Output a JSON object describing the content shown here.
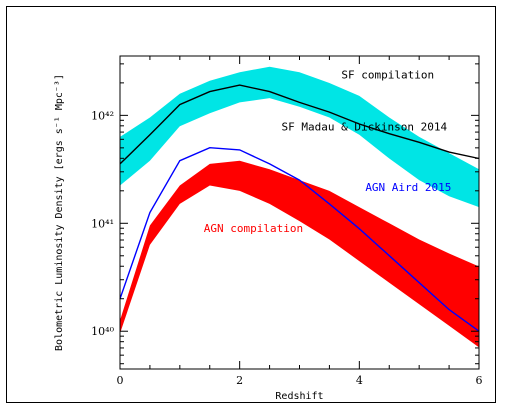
{
  "chart_data": {
    "type": "area",
    "xlabel": "Redshift",
    "ylabel": "Bolometric Luminosity Density [ergs s⁻¹ Mpc⁻³]",
    "xlim": [
      0,
      6
    ],
    "ylim_log10": [
      39.65,
      42.55
    ],
    "yscale": "log",
    "x_ticks": [
      "0",
      "2",
      "4",
      "6"
    ],
    "y_ticks": [
      {
        "exp": 40,
        "label": "10⁴⁰"
      },
      {
        "exp": 41,
        "label": "10⁴¹"
      },
      {
        "exp": 42,
        "label": "10⁴²"
      }
    ],
    "series": [
      {
        "name": "SF compilation",
        "kind": "band",
        "color": "#00e5e5",
        "x": [
          0.0,
          0.5,
          1.0,
          1.5,
          2.0,
          2.5,
          3.0,
          3.5,
          4.0,
          4.5,
          5.0,
          5.5,
          6.0
        ],
        "upper_log10": [
          41.8,
          41.98,
          42.2,
          42.32,
          42.4,
          42.45,
          42.4,
          42.3,
          42.18,
          41.98,
          41.8,
          41.65,
          41.5
        ],
        "lower_log10": [
          41.35,
          41.58,
          41.9,
          42.02,
          42.12,
          42.16,
          42.08,
          41.98,
          41.82,
          41.6,
          41.4,
          41.25,
          41.15
        ]
      },
      {
        "name": "SF Madau & Dickinson 2014",
        "kind": "line",
        "color": "#000000",
        "x": [
          0.0,
          0.5,
          1.0,
          1.5,
          2.0,
          2.5,
          3.0,
          3.5,
          4.0,
          4.5,
          5.0,
          5.5,
          6.0
        ],
        "y_log10": [
          41.55,
          41.82,
          42.1,
          42.22,
          42.28,
          42.22,
          42.12,
          42.03,
          41.92,
          41.83,
          41.75,
          41.66,
          41.6
        ]
      },
      {
        "name": "AGN Aird 2015",
        "kind": "line",
        "color": "#0000ff",
        "x": [
          0.0,
          0.5,
          1.0,
          1.5,
          2.0,
          2.5,
          3.0,
          3.5,
          4.0,
          4.5,
          5.0,
          5.5,
          6.0
        ],
        "y_log10": [
          40.3,
          41.1,
          41.58,
          41.7,
          41.68,
          41.55,
          41.4,
          41.18,
          40.95,
          40.7,
          40.45,
          40.2,
          40.0
        ]
      },
      {
        "name": "AGN compilation",
        "kind": "band",
        "color": "#ff0000",
        "x": [
          0.0,
          0.5,
          1.0,
          1.5,
          2.0,
          2.5,
          3.0,
          3.5,
          4.0,
          4.5,
          5.0,
          5.5,
          6.0
        ],
        "upper_log10": [
          40.1,
          40.98,
          41.35,
          41.55,
          41.58,
          41.5,
          41.4,
          41.3,
          41.15,
          41.0,
          40.85,
          40.72,
          40.6
        ],
        "lower_log10": [
          39.98,
          40.8,
          41.18,
          41.35,
          41.3,
          41.18,
          41.02,
          40.85,
          40.65,
          40.45,
          40.25,
          40.05,
          39.85
        ]
      }
    ],
    "annotations": [
      {
        "text": "SF compilation",
        "x": 3.7,
        "y_log10": 42.34,
        "color": "#000000"
      },
      {
        "text": "SF Madau & Dickinson 2014",
        "x": 2.7,
        "y_log10": 41.86,
        "color": "#000000"
      },
      {
        "text": "AGN Aird 2015",
        "x": 4.1,
        "y_log10": 41.3,
        "color": "#0000ff"
      },
      {
        "text": "AGN compilation",
        "x": 1.4,
        "y_log10": 40.92,
        "color": "#ff0000"
      }
    ]
  }
}
